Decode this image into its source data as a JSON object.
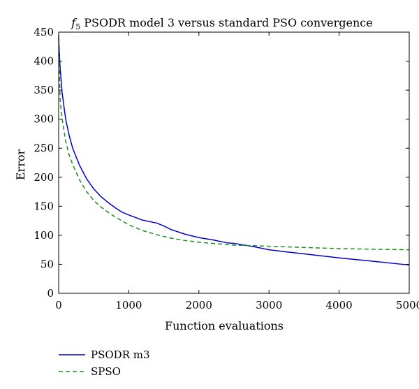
{
  "chart_data": {
    "type": "line",
    "title_italic": "f",
    "title_subscript": "5",
    "title_rest": " PSODR model 3 versus standard PSO convergence",
    "xlabel": "Function evaluations",
    "ylabel": "Error",
    "xlim": [
      0,
      5000
    ],
    "ylim": [
      0,
      450
    ],
    "xticks": [
      0,
      1000,
      2000,
      3000,
      4000,
      5000
    ],
    "yticks": [
      0,
      50,
      100,
      150,
      200,
      250,
      300,
      350,
      400,
      450
    ],
    "grid": false,
    "legend_position": "bottom-left, below plot",
    "series": [
      {
        "name": "PSODR m3",
        "color": "#0000cc",
        "dash": "solid",
        "x": [
          0,
          20,
          50,
          100,
          150,
          200,
          300,
          400,
          500,
          600,
          700,
          800,
          900,
          1000,
          1200,
          1400,
          1500,
          1600,
          1800,
          2000,
          2200,
          2400,
          2500,
          2600,
          2800,
          3000,
          3200,
          3500,
          4000,
          4500,
          4900,
          5000
        ],
        "y": [
          440,
          390,
          345,
          300,
          272,
          250,
          220,
          197,
          180,
          167,
          157,
          148,
          140,
          135,
          126,
          121,
          116,
          110,
          102,
          96,
          92,
          87,
          86,
          84,
          80,
          75,
          72,
          68,
          61,
          55,
          50,
          49
        ]
      },
      {
        "name": "SPSO",
        "color": "#1a8f1a",
        "dash": "6,4",
        "x": [
          0,
          20,
          50,
          100,
          150,
          200,
          300,
          400,
          500,
          600,
          700,
          800,
          900,
          1000,
          1200,
          1400,
          1600,
          1800,
          2000,
          2200,
          2500,
          2800,
          3000,
          3500,
          4000,
          4500,
          5000
        ],
        "y": [
          445,
          335,
          300,
          262,
          238,
          222,
          195,
          175,
          160,
          149,
          140,
          132,
          125,
          118,
          108,
          101,
          95,
          91,
          88,
          86,
          83,
          82,
          81,
          79,
          77,
          76,
          75
        ]
      }
    ]
  }
}
